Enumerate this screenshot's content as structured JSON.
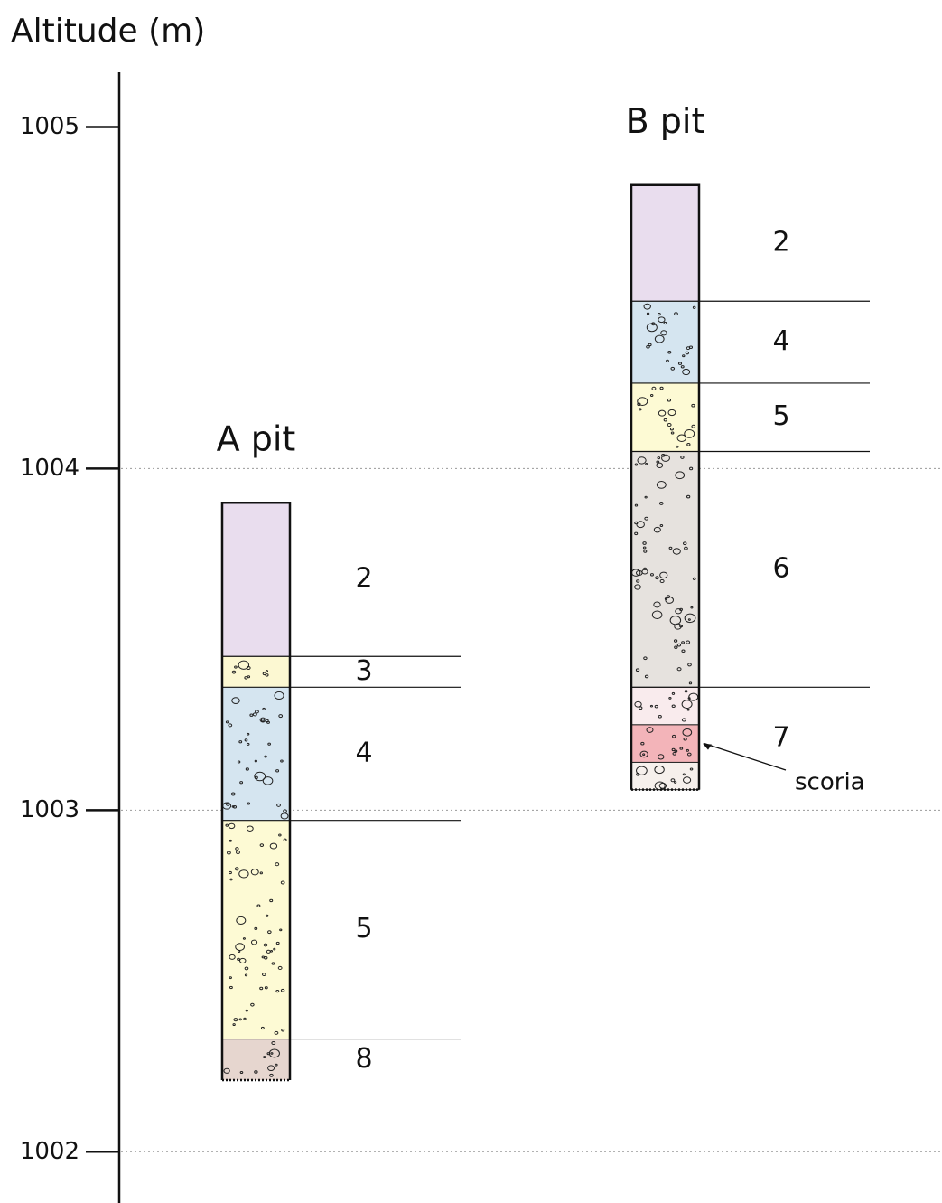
{
  "axis": {
    "title": "Altitude (m)",
    "ylim": [
      1001.85,
      1005.16
    ],
    "yticks": [
      1002,
      1003,
      1004,
      1005
    ],
    "grid": true
  },
  "pits": [
    {
      "name": "A pit",
      "layers": [
        {
          "label": "2",
          "top": 1003.9,
          "bottom": 1003.45,
          "color": "#e9ddee"
        },
        {
          "label": "3",
          "top": 1003.45,
          "bottom": 1003.36,
          "color": "#fcf8d2"
        },
        {
          "label": "4",
          "top": 1003.36,
          "bottom": 1002.97,
          "color": "#d5e5f0"
        },
        {
          "label": "5",
          "top": 1002.97,
          "bottom": 1002.33,
          "color": "#fdfad4"
        },
        {
          "label": "8",
          "top": 1002.33,
          "bottom": 1002.21,
          "color": "#e6d6cf"
        }
      ]
    },
    {
      "name": "B pit",
      "layers": [
        {
          "label": "2",
          "top": 1004.83,
          "bottom": 1004.49,
          "color": "#e9ddee"
        },
        {
          "label": "4",
          "top": 1004.49,
          "bottom": 1004.25,
          "color": "#d5e5f0"
        },
        {
          "label": "5",
          "top": 1004.25,
          "bottom": 1004.05,
          "color": "#fdfad4"
        },
        {
          "label": "6",
          "top": 1004.05,
          "bottom": 1003.36,
          "color": "#e6e2de"
        },
        {
          "label": "7",
          "top": 1003.36,
          "bottom": 1003.06,
          "bands": [
            {
              "top": 1003.36,
              "bottom": 1003.25,
              "color": "#f9ebed"
            },
            {
              "top": 1003.25,
              "bottom": 1003.14,
              "color": "#f3b4b9",
              "note": "scoria"
            },
            {
              "top": 1003.14,
              "bottom": 1003.06,
              "color": "#f6f0ec"
            }
          ]
        }
      ]
    }
  ]
}
